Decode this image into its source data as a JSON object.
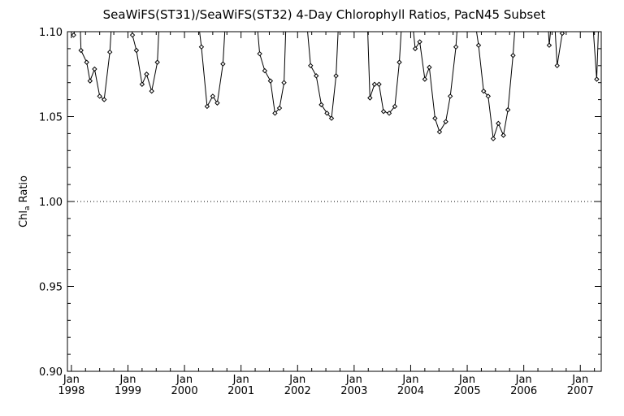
{
  "chart_data": {
    "type": "line",
    "title": "SeaWiFS(ST31)/SeaWiFS(ST32) 4-Day Chlorophyll Ratios, PacN45 Subset",
    "ylabel_main": "Chl",
    "ylabel_sub": "a",
    "ylabel_rest": " Ratio",
    "xlabel": "",
    "ylim": [
      0.9,
      1.1
    ],
    "yticks": [
      {
        "value": 0.9,
        "label": "0.90"
      },
      {
        "value": 0.95,
        "label": "0.95"
      },
      {
        "value": 1.0,
        "label": "1.00"
      },
      {
        "value": 1.05,
        "label": "1.05"
      },
      {
        "value": 1.1,
        "label": "1.10"
      }
    ],
    "xlim": [
      1997.93,
      2007.37
    ],
    "xticks": [
      {
        "value": 1998,
        "month": "Jan",
        "year": "1998"
      },
      {
        "value": 1999,
        "month": "Jan",
        "year": "1999"
      },
      {
        "value": 2000,
        "month": "Jan",
        "year": "2000"
      },
      {
        "value": 2001,
        "month": "Jan",
        "year": "2001"
      },
      {
        "value": 2002,
        "month": "Jan",
        "year": "2002"
      },
      {
        "value": 2003,
        "month": "Jan",
        "year": "2003"
      },
      {
        "value": 2004,
        "month": "Jan",
        "year": "2004"
      },
      {
        "value": 2005,
        "month": "Jan",
        "year": "2005"
      },
      {
        "value": 2006,
        "month": "Jan",
        "year": "2006"
      },
      {
        "value": 2007,
        "month": "Jan",
        "year": "2007"
      }
    ],
    "reference_line": {
      "value": 1.0,
      "style": "dotted"
    },
    "series": [
      {
        "segments": [
          [
            [
              1998.04,
              1.098
            ],
            [
              1998.13,
              1.11
            ]
          ],
          [
            [
              1998.15,
              1.11
            ],
            [
              1998.17,
              1.089
            ],
            [
              1998.27,
              1.082
            ],
            [
              1998.33,
              1.071
            ],
            [
              1998.41,
              1.078
            ],
            [
              1998.5,
              1.062
            ],
            [
              1998.58,
              1.06
            ],
            [
              1998.68,
              1.088
            ],
            [
              1998.72,
              1.11
            ]
          ],
          [
            [
              1999.04,
              1.11
            ],
            [
              1999.08,
              1.098
            ],
            [
              1999.15,
              1.089
            ],
            [
              1999.25,
              1.069
            ],
            [
              1999.33,
              1.075
            ],
            [
              1999.42,
              1.065
            ],
            [
              1999.52,
              1.082
            ],
            [
              1999.56,
              1.11
            ]
          ],
          [
            [
              2000.23,
              1.11
            ],
            [
              2000.3,
              1.091
            ],
            [
              2000.4,
              1.056
            ],
            [
              2000.5,
              1.062
            ],
            [
              2000.58,
              1.058
            ],
            [
              2000.68,
              1.081
            ],
            [
              2000.73,
              1.11
            ]
          ],
          [
            [
              2001.27,
              1.11
            ],
            [
              2001.33,
              1.087
            ],
            [
              2001.42,
              1.077
            ],
            [
              2001.52,
              1.071
            ],
            [
              2001.6,
              1.052
            ],
            [
              2001.68,
              1.055
            ],
            [
              2001.76,
              1.07
            ],
            [
              2001.8,
              1.11
            ]
          ],
          [
            [
              2002.15,
              1.11
            ],
            [
              2002.23,
              1.08
            ],
            [
              2002.33,
              1.074
            ],
            [
              2002.42,
              1.057
            ],
            [
              2002.52,
              1.052
            ],
            [
              2002.6,
              1.049
            ],
            [
              2002.68,
              1.074
            ],
            [
              2002.73,
              1.11
            ]
          ],
          [
            [
              2003.23,
              1.11
            ],
            [
              2003.28,
              1.061
            ],
            [
              2003.36,
              1.069
            ],
            [
              2003.44,
              1.069
            ],
            [
              2003.52,
              1.053
            ],
            [
              2003.62,
              1.052
            ],
            [
              2003.72,
              1.056
            ],
            [
              2003.8,
              1.082
            ],
            [
              2003.85,
              1.11
            ]
          ],
          [
            [
              2004.02,
              1.11
            ],
            [
              2004.08,
              1.09
            ],
            [
              2004.16,
              1.094
            ],
            [
              2004.25,
              1.072
            ],
            [
              2004.33,
              1.079
            ],
            [
              2004.43,
              1.049
            ],
            [
              2004.51,
              1.041
            ],
            [
              2004.62,
              1.047
            ],
            [
              2004.7,
              1.062
            ],
            [
              2004.8,
              1.091
            ],
            [
              2004.84,
              1.11
            ]
          ],
          [
            [
              2005.12,
              1.11
            ],
            [
              2005.2,
              1.092
            ],
            [
              2005.29,
              1.065
            ],
            [
              2005.37,
              1.062
            ],
            [
              2005.46,
              1.037
            ],
            [
              2005.55,
              1.046
            ],
            [
              2005.64,
              1.039
            ],
            [
              2005.72,
              1.054
            ],
            [
              2005.81,
              1.086
            ],
            [
              2005.86,
              1.11
            ]
          ],
          [
            [
              2006.42,
              1.11
            ],
            [
              2006.45,
              1.092
            ],
            [
              2006.5,
              1.11
            ]
          ],
          [
            [
              2006.54,
              1.11
            ],
            [
              2006.59,
              1.08
            ],
            [
              2006.68,
              1.099
            ],
            [
              2006.7,
              1.11
            ]
          ],
          [
            [
              2007.21,
              1.11
            ],
            [
              2007.29,
              1.072
            ],
            [
              2007.33,
              1.11
            ]
          ]
        ]
      }
    ]
  }
}
